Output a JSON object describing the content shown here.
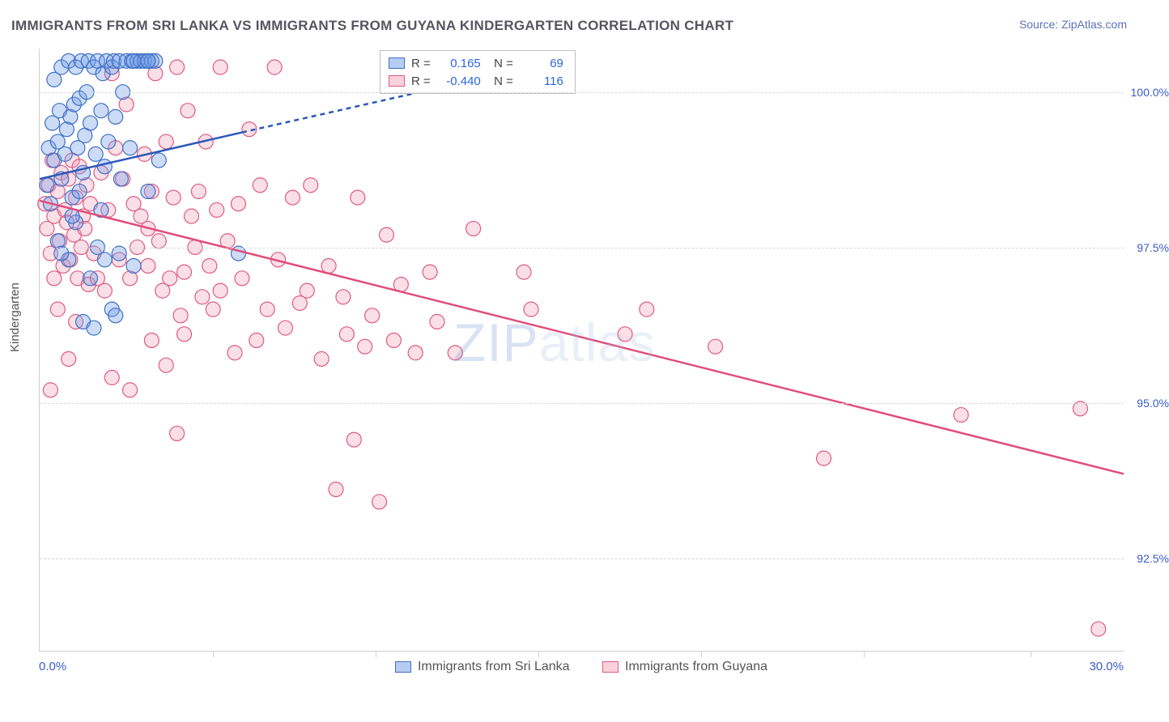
{
  "title": "IMMIGRANTS FROM SRI LANKA VS IMMIGRANTS FROM GUYANA KINDERGARTEN CORRELATION CHART",
  "source": "Source: ZipAtlas.com",
  "watermark_a": "ZIP",
  "watermark_b": "atlas",
  "chart": {
    "type": "scatter",
    "background_color": "#ffffff",
    "grid_color": "#d8d8d8",
    "border_color": "#cfcfcf",
    "text_color": "#555555",
    "value_color": "#3a5bc7",
    "xlim": [
      0.0,
      30.0
    ],
    "ylim": [
      91.0,
      100.7
    ],
    "y_ticks": [
      92.5,
      95.0,
      97.5,
      100.0
    ],
    "y_tick_labels": [
      "92.5%",
      "95.0%",
      "97.5%",
      "100.0%"
    ],
    "x_min_label": "0.0%",
    "x_max_label": "30.0%",
    "x_grid_positions": [
      4.8,
      9.3,
      13.8,
      18.3,
      22.8,
      27.4
    ],
    "y_axis_title": "Kindergarten",
    "point_radius": 9,
    "series": [
      {
        "name": "Immigrants from Sri Lanka",
        "color_fill": "#6d9be8",
        "color_stroke": "#3e6fc4",
        "R": "0.165",
        "N": "69"
      },
      {
        "name": "Immigrants from Guyana",
        "color_fill": "#f2a3b8",
        "color_stroke": "#e05a82",
        "R": "-0.440",
        "N": "116"
      }
    ],
    "trend_lines": {
      "sri_lanka": {
        "color": "#2b58b8",
        "width": 2.5,
        "solid": {
          "x1": 0.0,
          "y1": 98.6,
          "x2": 5.6,
          "y2": 99.35
        },
        "dashed": {
          "x1": 5.6,
          "y1": 99.35,
          "x2": 12.8,
          "y2": 100.3
        }
      },
      "guyana": {
        "color": "#e04d7b",
        "width": 2.5,
        "x1": 0.0,
        "y1": 98.25,
        "x2": 30.0,
        "y2": 93.85
      }
    },
    "points_sri_lanka": [
      [
        0.2,
        98.5
      ],
      [
        0.25,
        99.1
      ],
      [
        0.3,
        98.2
      ],
      [
        0.35,
        99.5
      ],
      [
        0.4,
        98.9
      ],
      [
        0.4,
        100.2
      ],
      [
        0.5,
        99.2
      ],
      [
        0.55,
        99.7
      ],
      [
        0.6,
        100.4
      ],
      [
        0.6,
        98.6
      ],
      [
        0.7,
        99.0
      ],
      [
        0.75,
        99.4
      ],
      [
        0.8,
        100.5
      ],
      [
        0.85,
        99.6
      ],
      [
        0.9,
        98.3
      ],
      [
        0.95,
        99.8
      ],
      [
        1.0,
        100.4
      ],
      [
        1.05,
        99.1
      ],
      [
        1.1,
        99.9
      ],
      [
        1.15,
        100.5
      ],
      [
        1.2,
        98.7
      ],
      [
        1.25,
        99.3
      ],
      [
        1.3,
        100.0
      ],
      [
        1.35,
        100.5
      ],
      [
        1.4,
        99.5
      ],
      [
        1.5,
        100.4
      ],
      [
        1.55,
        99.0
      ],
      [
        1.6,
        100.5
      ],
      [
        1.7,
        99.7
      ],
      [
        1.75,
        100.3
      ],
      [
        1.8,
        98.8
      ],
      [
        1.85,
        100.5
      ],
      [
        1.9,
        99.2
      ],
      [
        2.0,
        100.4
      ],
      [
        2.05,
        100.5
      ],
      [
        2.1,
        99.6
      ],
      [
        2.2,
        100.5
      ],
      [
        2.25,
        98.6
      ],
      [
        2.3,
        100.0
      ],
      [
        2.4,
        100.5
      ],
      [
        2.5,
        99.1
      ],
      [
        2.55,
        100.5
      ],
      [
        2.6,
        97.2
      ],
      [
        2.7,
        100.5
      ],
      [
        2.8,
        100.5
      ],
      [
        2.9,
        100.5
      ],
      [
        3.0,
        100.5
      ],
      [
        3.1,
        100.5
      ],
      [
        3.2,
        100.5
      ],
      [
        0.5,
        97.6
      ],
      [
        0.8,
        97.3
      ],
      [
        1.0,
        97.9
      ],
      [
        1.4,
        97.0
      ],
      [
        1.6,
        97.5
      ],
      [
        2.0,
        96.5
      ],
      [
        2.2,
        97.4
      ],
      [
        1.2,
        96.3
      ],
      [
        0.9,
        98.0
      ],
      [
        1.7,
        98.1
      ],
      [
        1.5,
        96.2
      ],
      [
        1.1,
        98.4
      ],
      [
        1.8,
        97.3
      ],
      [
        0.6,
        97.4
      ],
      [
        2.1,
        96.4
      ],
      [
        2.6,
        100.5
      ],
      [
        3.0,
        98.4
      ],
      [
        3.3,
        98.9
      ],
      [
        5.5,
        97.4
      ],
      [
        3.0,
        100.5
      ]
    ],
    "points_guyana": [
      [
        0.15,
        98.2
      ],
      [
        0.2,
        97.8
      ],
      [
        0.25,
        98.5
      ],
      [
        0.3,
        97.4
      ],
      [
        0.35,
        98.9
      ],
      [
        0.4,
        98.0
      ],
      [
        0.4,
        97.0
      ],
      [
        0.5,
        98.4
      ],
      [
        0.55,
        97.6
      ],
      [
        0.6,
        98.7
      ],
      [
        0.65,
        97.2
      ],
      [
        0.7,
        98.1
      ],
      [
        0.75,
        97.9
      ],
      [
        0.8,
        98.6
      ],
      [
        0.85,
        97.3
      ],
      [
        0.9,
        98.9
      ],
      [
        0.95,
        97.7
      ],
      [
        1.0,
        98.3
      ],
      [
        1.05,
        97.0
      ],
      [
        1.1,
        98.8
      ],
      [
        1.15,
        97.5
      ],
      [
        1.2,
        98.0
      ],
      [
        1.25,
        97.8
      ],
      [
        1.3,
        98.5
      ],
      [
        1.35,
        96.9
      ],
      [
        1.4,
        98.2
      ],
      [
        1.5,
        97.4
      ],
      [
        1.6,
        97.0
      ],
      [
        1.7,
        98.7
      ],
      [
        1.8,
        96.8
      ],
      [
        1.9,
        98.1
      ],
      [
        2.0,
        100.3
      ],
      [
        2.1,
        99.1
      ],
      [
        2.2,
        97.3
      ],
      [
        2.3,
        98.6
      ],
      [
        2.4,
        99.8
      ],
      [
        2.5,
        97.0
      ],
      [
        2.6,
        98.2
      ],
      [
        2.7,
        97.5
      ],
      [
        2.8,
        98.0
      ],
      [
        2.9,
        99.0
      ],
      [
        3.0,
        97.8
      ],
      [
        3.0,
        97.2
      ],
      [
        3.1,
        98.4
      ],
      [
        3.2,
        100.3
      ],
      [
        3.3,
        97.6
      ],
      [
        3.4,
        96.8
      ],
      [
        3.5,
        99.2
      ],
      [
        3.6,
        97.0
      ],
      [
        3.7,
        98.3
      ],
      [
        3.8,
        100.4
      ],
      [
        3.9,
        96.4
      ],
      [
        4.0,
        97.1
      ],
      [
        4.1,
        99.7
      ],
      [
        4.2,
        98.0
      ],
      [
        4.3,
        97.5
      ],
      [
        4.4,
        98.4
      ],
      [
        4.5,
        96.7
      ],
      [
        4.6,
        99.2
      ],
      [
        4.7,
        97.2
      ],
      [
        4.8,
        96.5
      ],
      [
        4.9,
        98.1
      ],
      [
        5.0,
        100.4
      ],
      [
        5.2,
        97.6
      ],
      [
        5.4,
        95.8
      ],
      [
        5.5,
        98.2
      ],
      [
        5.6,
        97.0
      ],
      [
        5.8,
        99.4
      ],
      [
        6.0,
        96.0
      ],
      [
        6.1,
        98.5
      ],
      [
        6.3,
        96.5
      ],
      [
        6.5,
        100.4
      ],
      [
        6.6,
        97.3
      ],
      [
        6.8,
        96.2
      ],
      [
        7.0,
        98.3
      ],
      [
        7.2,
        96.6
      ],
      [
        7.4,
        96.8
      ],
      [
        7.5,
        98.5
      ],
      [
        7.8,
        95.7
      ],
      [
        8.0,
        97.2
      ],
      [
        8.2,
        93.6
      ],
      [
        8.4,
        96.7
      ],
      [
        8.5,
        96.1
      ],
      [
        8.7,
        94.4
      ],
      [
        8.8,
        98.3
      ],
      [
        9.0,
        95.9
      ],
      [
        9.2,
        96.4
      ],
      [
        9.4,
        93.4
      ],
      [
        9.6,
        97.7
      ],
      [
        9.8,
        96.0
      ],
      [
        10.0,
        96.9
      ],
      [
        10.4,
        95.8
      ],
      [
        10.8,
        97.1
      ],
      [
        11.0,
        96.3
      ],
      [
        11.5,
        95.8
      ],
      [
        12.0,
        97.8
      ],
      [
        13.4,
        97.1
      ],
      [
        13.6,
        96.5
      ],
      [
        16.2,
        96.1
      ],
      [
        16.8,
        96.5
      ],
      [
        18.7,
        95.9
      ],
      [
        21.7,
        94.1
      ],
      [
        25.5,
        94.8
      ],
      [
        28.8,
        94.9
      ],
      [
        29.3,
        91.35
      ],
      [
        1.0,
        96.3
      ],
      [
        2.0,
        95.4
      ],
      [
        3.5,
        95.6
      ],
      [
        4.0,
        96.1
      ],
      [
        3.8,
        94.5
      ],
      [
        5.0,
        96.8
      ],
      [
        3.1,
        96.0
      ],
      [
        2.5,
        95.2
      ],
      [
        0.5,
        96.5
      ],
      [
        0.3,
        95.2
      ],
      [
        0.8,
        95.7
      ]
    ]
  }
}
